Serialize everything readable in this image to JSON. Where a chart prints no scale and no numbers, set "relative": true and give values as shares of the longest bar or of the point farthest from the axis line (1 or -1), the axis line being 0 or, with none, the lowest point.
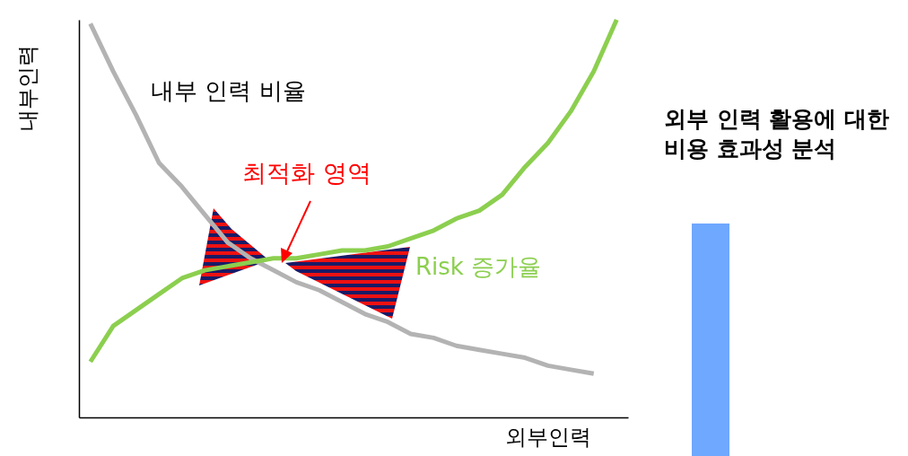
{
  "chart_data": {
    "type": "line",
    "relative": true,
    "title": "외부 인력 활용에 대한 비용 효과성 분석",
    "xlabel": "외부인력",
    "ylabel": "내부인력",
    "categories": [
      null,
      null,
      null,
      null,
      null,
      null,
      null,
      null,
      null,
      null,
      null,
      null,
      null,
      null,
      null,
      null,
      null,
      null,
      null,
      null,
      null,
      null,
      null,
      null
    ],
    "series": [
      {
        "name": "내부 인력 비율",
        "color": "#b3b3b3",
        "values": [
          0.99,
          0.87,
          0.76,
          0.64,
          0.58,
          0.51,
          0.44,
          0.4,
          0.37,
          0.34,
          0.32,
          0.29,
          0.26,
          0.24,
          0.21,
          0.2,
          0.18,
          0.17,
          0.16,
          0.15,
          0.13,
          0.12,
          0.11,
          null
        ]
      },
      {
        "name": "Risk 증가율",
        "color": "#8ccf4f",
        "values": [
          0.14,
          0.23,
          0.27,
          0.31,
          0.35,
          0.37,
          0.38,
          0.39,
          0.4,
          0.4,
          0.41,
          0.42,
          0.42,
          0.43,
          0.45,
          0.47,
          0.5,
          0.52,
          0.56,
          0.63,
          0.69,
          0.77,
          0.87,
          1
        ]
      }
    ],
    "annotations": [
      "최적화 영역"
    ]
  }
}
